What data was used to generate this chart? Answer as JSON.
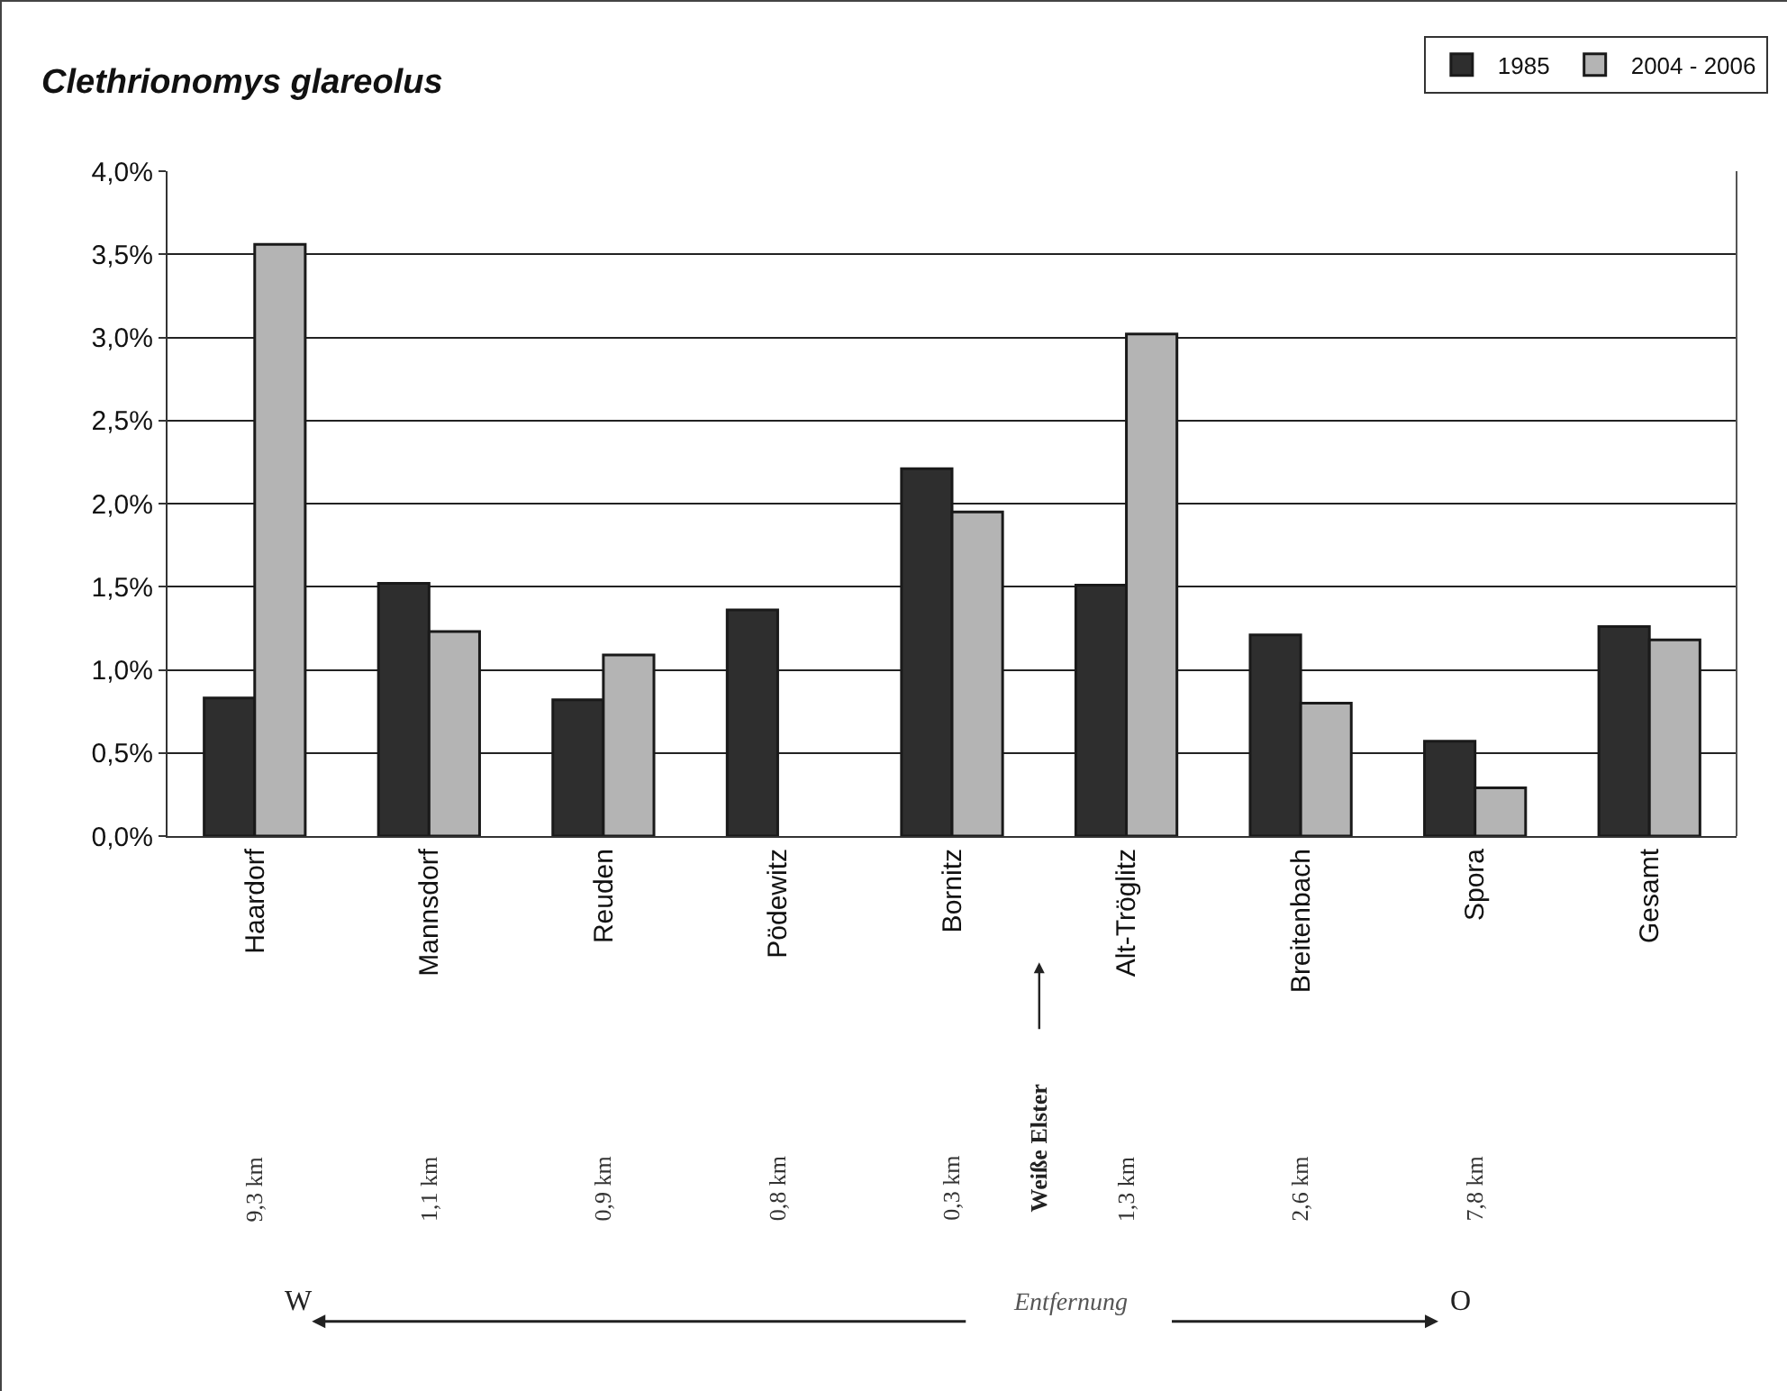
{
  "chart_data": {
    "type": "bar",
    "title": "Clethrionomys glareolus",
    "categories": [
      "Haardorf",
      "Mannsdorf",
      "Reuden",
      "Pödewitz",
      "Bornitz",
      "Alt-Tröglitz",
      "Breitenbach",
      "Spora",
      "Gesamt"
    ],
    "series": [
      {
        "name": "1985",
        "color": "#2e2e2e",
        "values": [
          0.83,
          1.52,
          0.82,
          1.36,
          2.21,
          1.51,
          1.21,
          0.57,
          1.26
        ]
      },
      {
        "name": "2004 - 2006",
        "color": "#b4b4b4",
        "values": [
          3.56,
          1.23,
          1.09,
          null,
          1.95,
          3.02,
          0.8,
          0.29,
          1.18
        ]
      }
    ],
    "ylim": [
      0,
      4
    ],
    "yticks": [
      {
        "value": 0,
        "label": "0,0%"
      },
      {
        "value": 0.5,
        "label": "0,5%"
      },
      {
        "value": 1,
        "label": "1,0%"
      },
      {
        "value": 1.5,
        "label": "1,5%"
      },
      {
        "value": 2,
        "label": "2,0%"
      },
      {
        "value": 2.5,
        "label": "2,5%"
      },
      {
        "value": 3,
        "label": "3,0%"
      },
      {
        "value": 3.5,
        "label": "3,5%"
      },
      {
        "value": 4,
        "label": "4,0%"
      }
    ],
    "grid": "y",
    "legend": "top right",
    "annotations": [
      "9,3 km",
      "1,1 km",
      "0,9 km",
      "0,8 km",
      "0,3 km",
      "1,3 km",
      "2,6 km",
      "7,8 km",
      "Weiße Elster",
      "W",
      "Entfernung",
      "O"
    ]
  }
}
